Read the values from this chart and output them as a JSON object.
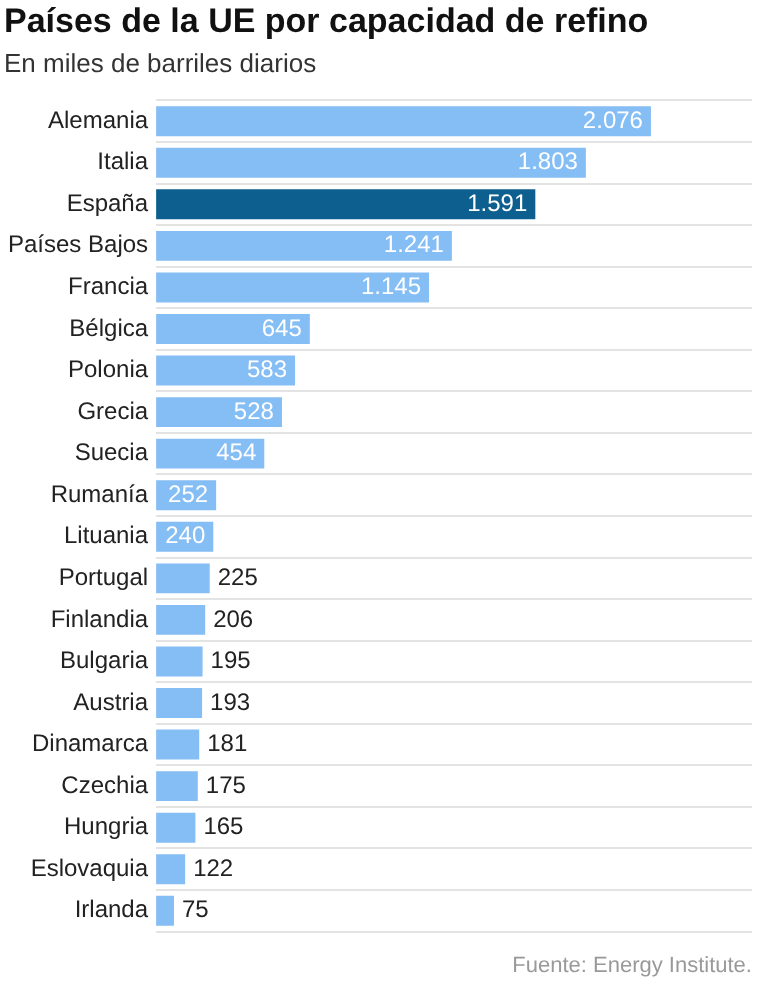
{
  "chart_data": {
    "type": "bar",
    "orientation": "horizontal",
    "title": "Países de la UE por capacidad de refino",
    "subtitle": "En miles de barriles diarios",
    "categories": [
      "Alemania",
      "Italia",
      "España",
      "Países Bajos",
      "Francia",
      "Bélgica",
      "Polonia",
      "Grecia",
      "Suecia",
      "Rumanía",
      "Lituania",
      "Portugal",
      "Finlandia",
      "Bulgaria",
      "Austria",
      "Dinamarca",
      "Czechia",
      "Hungria",
      "Eslovaquia",
      "Irlanda"
    ],
    "values": [
      2076,
      1803,
      1591,
      1241,
      1145,
      645,
      583,
      528,
      454,
      252,
      240,
      225,
      206,
      195,
      193,
      181,
      175,
      165,
      122,
      75
    ],
    "value_labels": [
      "2.076",
      "1.803",
      "1.591",
      "1.241",
      "1.145",
      "645",
      "583",
      "528",
      "454",
      "252",
      "240",
      "225",
      "206",
      "195",
      "193",
      "181",
      "175",
      "165",
      "122",
      "75"
    ],
    "colors": [
      "#85bdf5",
      "#85bdf5",
      "#0d5f8f",
      "#85bdf5",
      "#85bdf5",
      "#85bdf5",
      "#85bdf5",
      "#85bdf5",
      "#85bdf5",
      "#85bdf5",
      "#85bdf5",
      "#85bdf5",
      "#85bdf5",
      "#85bdf5",
      "#85bdf5",
      "#85bdf5",
      "#85bdf5",
      "#85bdf5",
      "#85bdf5",
      "#85bdf5"
    ],
    "grid": "y",
    "legend": false,
    "tick_labels": "y",
    "annotations": [
      "Fuente: Energy Institute."
    ]
  }
}
